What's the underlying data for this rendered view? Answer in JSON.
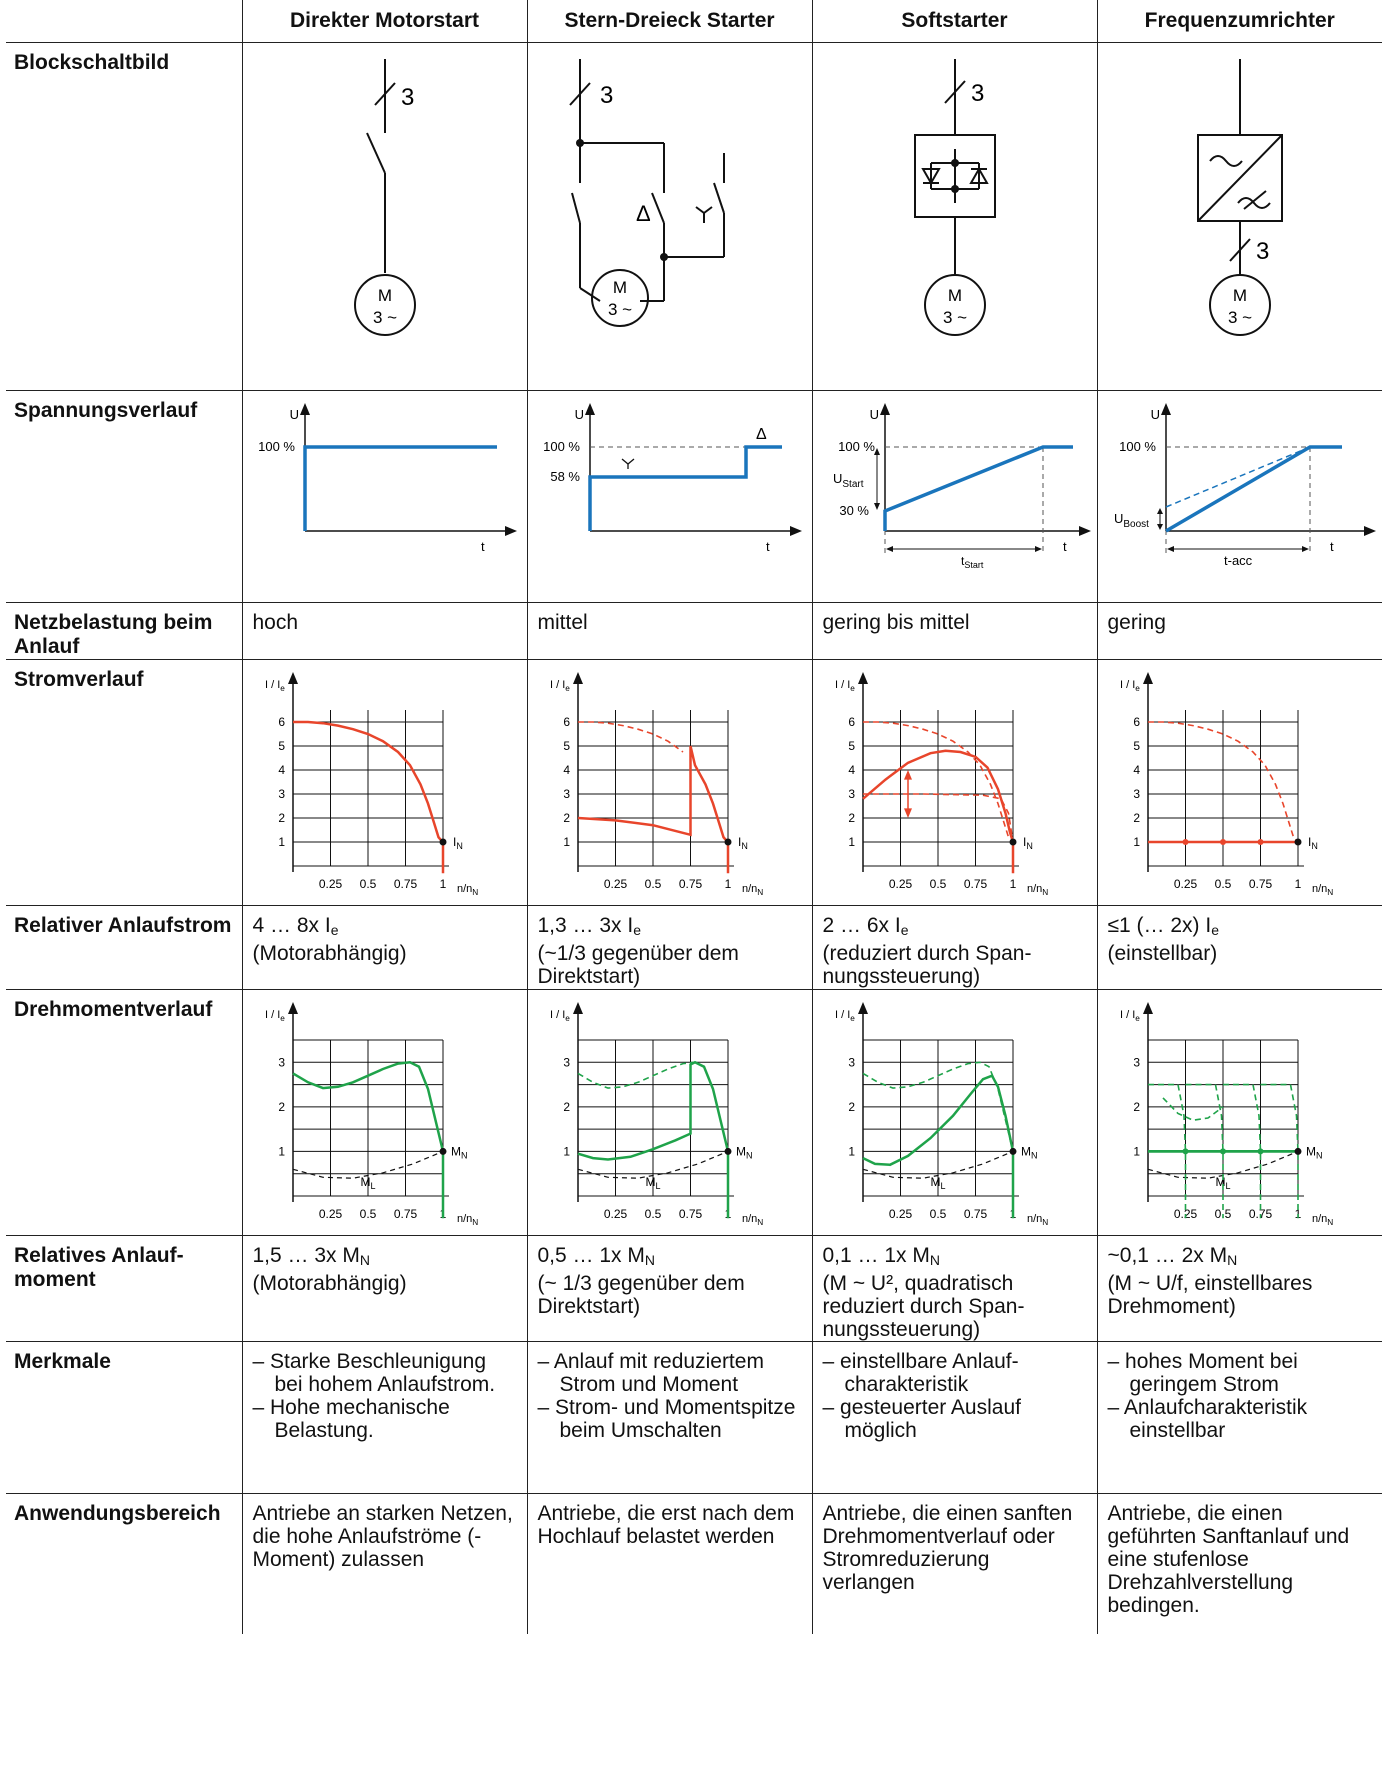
{
  "header": {
    "col1": "Direkter Motorstart",
    "col2": "Stern-Dreieck Starter",
    "col3": "Softstarter",
    "col4": "Frequenzumrichter"
  },
  "rows": {
    "blockschaltbild": "Blockschaltbild",
    "spannungsverlauf": "Spannungsverlauf",
    "netzbelastung": "Netzbelastung beim Anlauf",
    "stromverlauf": "Stromverlauf",
    "rel_anlaufstrom": "Relativer Anlauf­strom",
    "drehmomentverlauf": "Drehmomentver­lauf",
    "rel_anlaufmoment": "Relatives Anlauf­moment",
    "merkmale": "Merkmale",
    "anwendungsbereich": "Anwendungsbe­reich"
  },
  "netzbelastung": [
    "hoch",
    "mittel",
    "gering bis mittel",
    "gering"
  ],
  "anlaufstrom": [
    {
      "line1": "4 … 8x I",
      "sub": "e",
      "line2": "(Motorabhängig)"
    },
    {
      "line1": "1,3 … 3x I",
      "sub": "e",
      "line2": "(~1/3 gegenüber dem Direktstart)"
    },
    {
      "line1": "2 … 6x I",
      "sub": "e",
      "line2": "(reduziert durch Span­nungssteuerung)"
    },
    {
      "line1": "≤1 (… 2x) I",
      "sub": "e",
      "line2": "(einstellbar)"
    }
  ],
  "anlaufmoment": [
    {
      "line1": "1,5 … 3x M",
      "sub": "N",
      "line2": "(Motorabhängig)"
    },
    {
      "line1": "0,5 … 1x M",
      "sub": "N",
      "line2": "(~ 1/3 gegenüber dem Direktstart)"
    },
    {
      "line1": "0,1 … 1x M",
      "sub": "N",
      "line2": "(M ~ U², quadratisch reduziert durch Span­nungssteuerung)"
    },
    {
      "line1": "~0,1 … 2x M",
      "sub": "N",
      "line2": "(M ~ U/f, einstellbares Drehmoment)"
    }
  ],
  "merkmale": [
    [
      "Starke Beschleuni­gung bei hohem Anlaufstrom.",
      "Hohe mechanische Belastung."
    ],
    [
      "Anlauf mit reduzier­tem Strom und Moment",
      "Strom- und Moment­spitze beim Umschal­ten"
    ],
    [
      "einstellbare Anlauf­charakteristik",
      "gesteuerter Auslauf möglich"
    ],
    [
      "hohes Moment bei geringem Strom",
      "Anlaufcharakteristik einstellbar"
    ]
  ],
  "anwendung": [
    "Antriebe an starken Netzen, die hohe Anlaufströme (-Moment) zulassen",
    "Antriebe, die erst nach dem Hochlauf belastet werden",
    "Antriebe, die einen sanf­ten Drehmomentverlauf oder Stromreduzierung verlangen",
    "Antriebe, die einen geführten Sanftanlauf und eine stufenlose Drehzahlverstellung bedingen."
  ],
  "diagram_text": {
    "three": "3",
    "motor_m": "M",
    "motor_3": "3 ~",
    "u": "U",
    "t": "t",
    "p100": "100 %",
    "p58": "58 %",
    "p30": "30 %",
    "ustart": "U",
    "ustart_sub": "Start",
    "uboost": "U",
    "uboost_sub": "Boost",
    "tstart": "t",
    "tstart_sub": "Start",
    "tacc": "t-acc",
    "i_ie": "I / I",
    "i_ie_sub": "e",
    "n_nn": "n/n",
    "n_nn_sub": "N",
    "i_n": "I",
    "i_n_sub": "N",
    "m_n": "M",
    "m_n_sub": "N",
    "m_l": "M",
    "m_l_sub": "L",
    "x_ticks": [
      "0.25",
      "0.5",
      "0.75",
      "1"
    ],
    "i_ticks": [
      "1",
      "2",
      "3",
      "4",
      "5",
      "6"
    ],
    "m_ticks": [
      "1",
      "2",
      "3"
    ],
    "delta": "Δ",
    "star": "Y"
  },
  "colors": {
    "blue": "#1a75bc",
    "red": "#e8452b",
    "green": "#1fa34a",
    "black": "#111111"
  }
}
